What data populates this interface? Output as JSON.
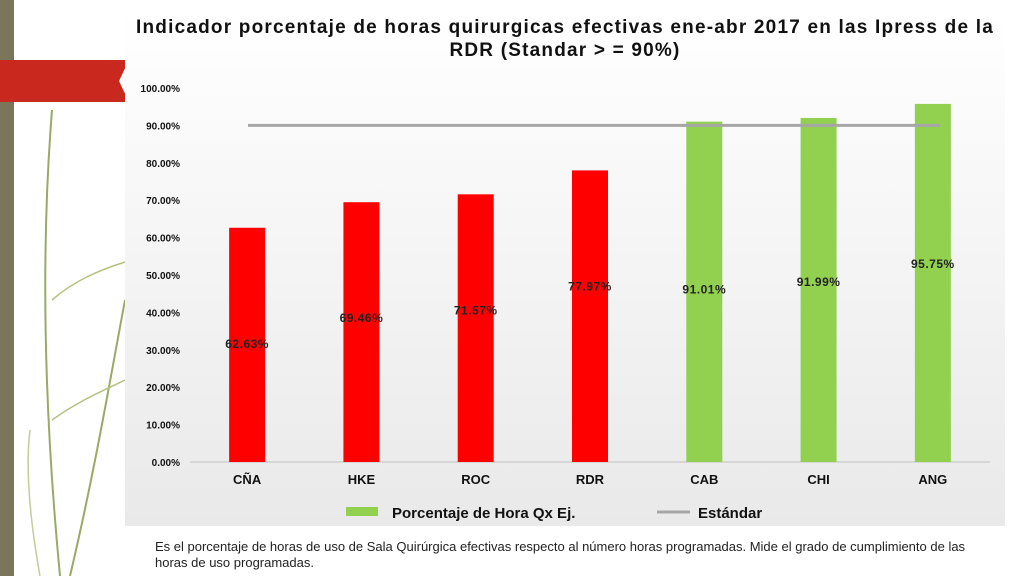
{
  "chart_data": {
    "type": "bar",
    "title": "Indicador porcentaje de horas quirurgicas efectivas ene-abr 2017 en las Ipress de la RDR (Standar > = 90%)",
    "categories": [
      "CÑA",
      "HKE",
      "ROC",
      "RDR",
      "CAB",
      "CHI",
      "ANG"
    ],
    "values": [
      62.63,
      69.46,
      71.57,
      77.97,
      91.01,
      91.99,
      95.75
    ],
    "value_labels": [
      "62.63%",
      "69.46%",
      "71.57%",
      "77.97%",
      "91.01%",
      "91.99%",
      "95.75%"
    ],
    "ylim": [
      0,
      100
    ],
    "yticks": [
      0,
      10,
      20,
      30,
      40,
      50,
      60,
      70,
      80,
      90,
      100
    ],
    "ytick_labels": [
      "0.00%",
      "10.00%",
      "20.00%",
      "30.00%",
      "40.00%",
      "50.00%",
      "60.00%",
      "70.00%",
      "80.00%",
      "90.00%",
      "100.00%"
    ],
    "standard": 90,
    "legend": {
      "series_label": "Porcentaje de Hora Qx Ej.",
      "standard_label": "Estándar",
      "position": "bottom"
    },
    "colors": {
      "below": "#ff0000",
      "above": "#92d050",
      "standard": "#a6a6a6"
    }
  },
  "caption": "Es el porcentaje de horas de uso de Sala Quirúrgica efectivas respecto al número horas programadas. Mide el grado de cumplimiento de las horas de uso programadas."
}
